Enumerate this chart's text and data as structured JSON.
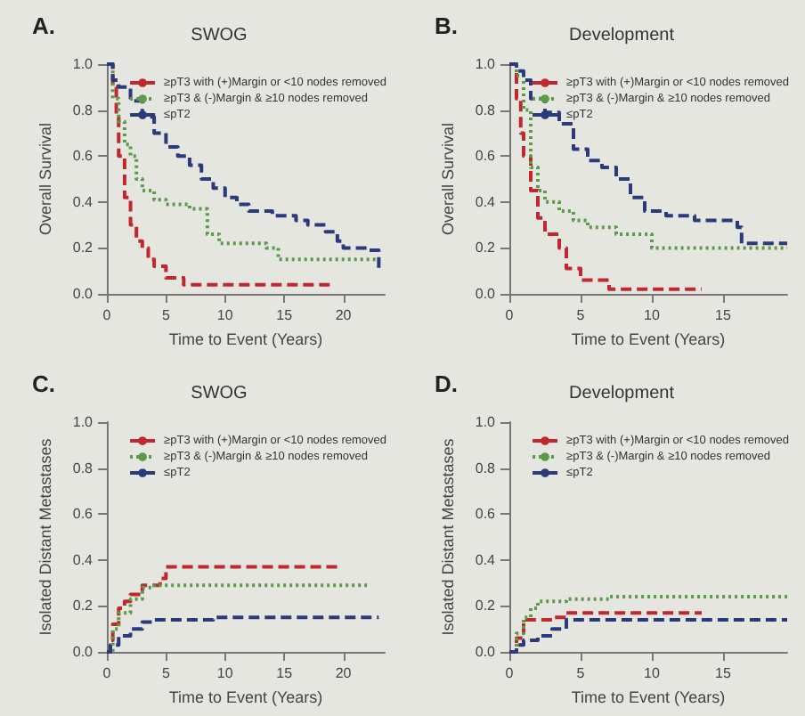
{
  "chart_data": [
    {
      "type": "step",
      "title": "SWOG",
      "annotations": [
        "A."
      ],
      "xlabel": "Time to Event (Years)",
      "ylabel": "Overall Survival",
      "xlim": [
        0,
        23.5
      ],
      "xticks": [
        0,
        5,
        10,
        15,
        20
      ],
      "ylim": [
        0,
        1
      ],
      "yticks": [
        {
          "value": 0,
          "label": "0.0"
        },
        {
          "value": 0.2,
          "label": "0.2"
        },
        {
          "value": 0.4,
          "label": "0.4"
        },
        {
          "value": 0.6,
          "label": "0.6"
        },
        {
          "value": 0.8,
          "label": "0.8"
        },
        {
          "value": 1,
          "label": "1.0"
        }
      ],
      "legend": "top right",
      "series": [
        {
          "name": "≥pT3 with (+)Margin or <10 nodes removed",
          "color": "#c0282d",
          "line_style": "dashed",
          "x": [
            0,
            0.5,
            0.8,
            1,
            1.5,
            2,
            2.5,
            3,
            3.5,
            4,
            5,
            6.5,
            19
          ],
          "values": [
            1,
            0.9,
            0.77,
            0.6,
            0.42,
            0.3,
            0.23,
            0.2,
            0.15,
            0.12,
            0.07,
            0.04,
            0.04
          ]
        },
        {
          "name": "≥pT3 & (-)Margin & ≥10 nodes removed",
          "color": "#5a9a4a",
          "line_style": "dotted",
          "x": [
            0,
            0.5,
            1,
            1.5,
            2,
            2.5,
            3,
            4,
            5,
            7,
            8.5,
            9.5,
            13.5,
            14.5,
            23
          ],
          "values": [
            1,
            0.85,
            0.75,
            0.65,
            0.6,
            0.5,
            0.45,
            0.41,
            0.39,
            0.37,
            0.26,
            0.22,
            0.2,
            0.15,
            0.15
          ]
        },
        {
          "name": "≤pT2",
          "color": "#2a3a7a",
          "line_style": "dashed",
          "x": [
            0,
            0.5,
            1,
            2,
            3,
            4,
            5,
            6,
            7,
            8,
            9,
            10,
            11,
            12,
            14,
            16,
            17,
            18.5,
            19.5,
            20,
            22,
            23
          ],
          "values": [
            1,
            0.93,
            0.9,
            0.84,
            0.77,
            0.7,
            0.64,
            0.6,
            0.56,
            0.5,
            0.46,
            0.42,
            0.39,
            0.36,
            0.34,
            0.32,
            0.3,
            0.27,
            0.23,
            0.2,
            0.19,
            0.1
          ]
        }
      ]
    },
    {
      "type": "step",
      "title": "Development",
      "annotations": [
        "B."
      ],
      "xlabel": "Time to Event (Years)",
      "ylabel": "Overall Survival",
      "xlim": [
        0,
        19.5
      ],
      "xticks": [
        0,
        5,
        10,
        15
      ],
      "ylim": [
        0,
        1
      ],
      "yticks": [
        {
          "value": 0,
          "label": "0.0"
        },
        {
          "value": 0.2,
          "label": "0.2"
        },
        {
          "value": 0.4,
          "label": "0.4"
        },
        {
          "value": 0.6,
          "label": "0.6"
        },
        {
          "value": 0.8,
          "label": "0.8"
        },
        {
          "value": 1,
          "label": "1.0"
        }
      ],
      "legend": "top right",
      "series": [
        {
          "name": "≥pT3 with (+)Margin or <10 nodes removed",
          "color": "#c0282d",
          "line_style": "dashed",
          "x": [
            0,
            0.5,
            0.8,
            1,
            1.5,
            2,
            2.5,
            3.5,
            4,
            5,
            7,
            13.5
          ],
          "values": [
            1,
            0.85,
            0.7,
            0.6,
            0.45,
            0.33,
            0.26,
            0.2,
            0.11,
            0.06,
            0.02,
            0.02
          ]
        },
        {
          "name": "≥pT3 & (-)Margin & ≥10 nodes removed",
          "color": "#5a9a4a",
          "line_style": "dotted",
          "x": [
            0,
            0.5,
            1,
            1.5,
            2,
            2.5,
            3.5,
            4.5,
            5.5,
            7.5,
            10,
            19.5
          ],
          "values": [
            1,
            0.95,
            0.8,
            0.55,
            0.45,
            0.4,
            0.36,
            0.32,
            0.29,
            0.26,
            0.2,
            0.2
          ]
        },
        {
          "name": "≤pT2",
          "color": "#2a3a7a",
          "line_style": "dashed",
          "x": [
            0,
            0.5,
            1,
            1.5,
            2.5,
            3.5,
            4.5,
            5.5,
            6.5,
            7.5,
            8.5,
            9.5,
            11,
            13,
            16,
            16.3,
            19.5
          ],
          "values": [
            1,
            0.97,
            0.93,
            0.85,
            0.79,
            0.74,
            0.63,
            0.58,
            0.55,
            0.5,
            0.42,
            0.36,
            0.34,
            0.32,
            0.29,
            0.22,
            0.22
          ]
        }
      ]
    },
    {
      "type": "step",
      "title": "SWOG",
      "annotations": [
        "C."
      ],
      "xlabel": "Time to Event (Years)",
      "ylabel": "Isolated Distant Metastases",
      "xlim": [
        0,
        23.5
      ],
      "xticks": [
        0,
        5,
        10,
        15,
        20
      ],
      "ylim": [
        0,
        1
      ],
      "yticks": [
        {
          "value": 0,
          "label": "0.0"
        },
        {
          "value": 0.2,
          "label": "0.2"
        },
        {
          "value": 0.4,
          "label": "0.4"
        },
        {
          "value": 0.6,
          "label": "0.6"
        },
        {
          "value": 0.8,
          "label": "0.8"
        },
        {
          "value": 1,
          "label": "1.0"
        }
      ],
      "legend": "top right",
      "series": [
        {
          "name": "≥pT3 with (+)Margin or <10 nodes removed",
          "color": "#c0282d",
          "line_style": "dashed",
          "x": [
            0,
            0.3,
            0.5,
            1,
            1.5,
            2,
            3,
            4.5,
            5,
            19.5
          ],
          "values": [
            0,
            0.05,
            0.12,
            0.19,
            0.22,
            0.25,
            0.29,
            0.32,
            0.37,
            0.37
          ]
        },
        {
          "name": "≥pT3 & (-)Margin & ≥10 nodes removed",
          "color": "#5a9a4a",
          "line_style": "dotted",
          "x": [
            0,
            0.5,
            1,
            2,
            3,
            4,
            22
          ],
          "values": [
            0,
            0.1,
            0.17,
            0.23,
            0.28,
            0.29,
            0.29
          ]
        },
        {
          "name": "≤pT2",
          "color": "#2a3a7a",
          "line_style": "dashed",
          "x": [
            0,
            0.3,
            1,
            2,
            3,
            4,
            9,
            23
          ],
          "values": [
            0,
            0.03,
            0.07,
            0.1,
            0.13,
            0.14,
            0.15,
            0.15
          ]
        }
      ]
    },
    {
      "type": "step",
      "title": "Development",
      "annotations": [
        "D."
      ],
      "xlabel": "Time to Event (Years)",
      "ylabel": "Isolated Distant Metastases",
      "xlim": [
        0,
        19.5
      ],
      "xticks": [
        0,
        5,
        10,
        15
      ],
      "ylim": [
        0,
        1
      ],
      "yticks": [
        {
          "value": 0,
          "label": "0.0"
        },
        {
          "value": 0.2,
          "label": "0.2"
        },
        {
          "value": 0.4,
          "label": "0.4"
        },
        {
          "value": 0.6,
          "label": "0.6"
        },
        {
          "value": 0.8,
          "label": "0.8"
        },
        {
          "value": 1,
          "label": "1.0"
        }
      ],
      "legend": "top right",
      "series": [
        {
          "name": "≥pT3 with (+)Margin or <10 nodes removed",
          "color": "#c0282d",
          "line_style": "dashed",
          "x": [
            0,
            0.5,
            1,
            3,
            4,
            13.5
          ],
          "values": [
            0,
            0.06,
            0.14,
            0.15,
            0.17,
            0.17
          ]
        },
        {
          "name": "≥pT3 & (-)Margin & ≥10 nodes removed",
          "color": "#5a9a4a",
          "line_style": "dotted",
          "x": [
            0,
            0.5,
            1,
            1.5,
            2,
            4,
            7,
            19.5
          ],
          "values": [
            0,
            0.08,
            0.15,
            0.19,
            0.22,
            0.23,
            0.24,
            0.24
          ]
        },
        {
          "name": "≤pT2",
          "color": "#2a3a7a",
          "line_style": "dashed",
          "x": [
            0,
            0.5,
            1,
            2,
            3,
            4,
            19.5
          ],
          "values": [
            0,
            0.03,
            0.05,
            0.07,
            0.1,
            0.14,
            0.14
          ]
        }
      ]
    }
  ]
}
